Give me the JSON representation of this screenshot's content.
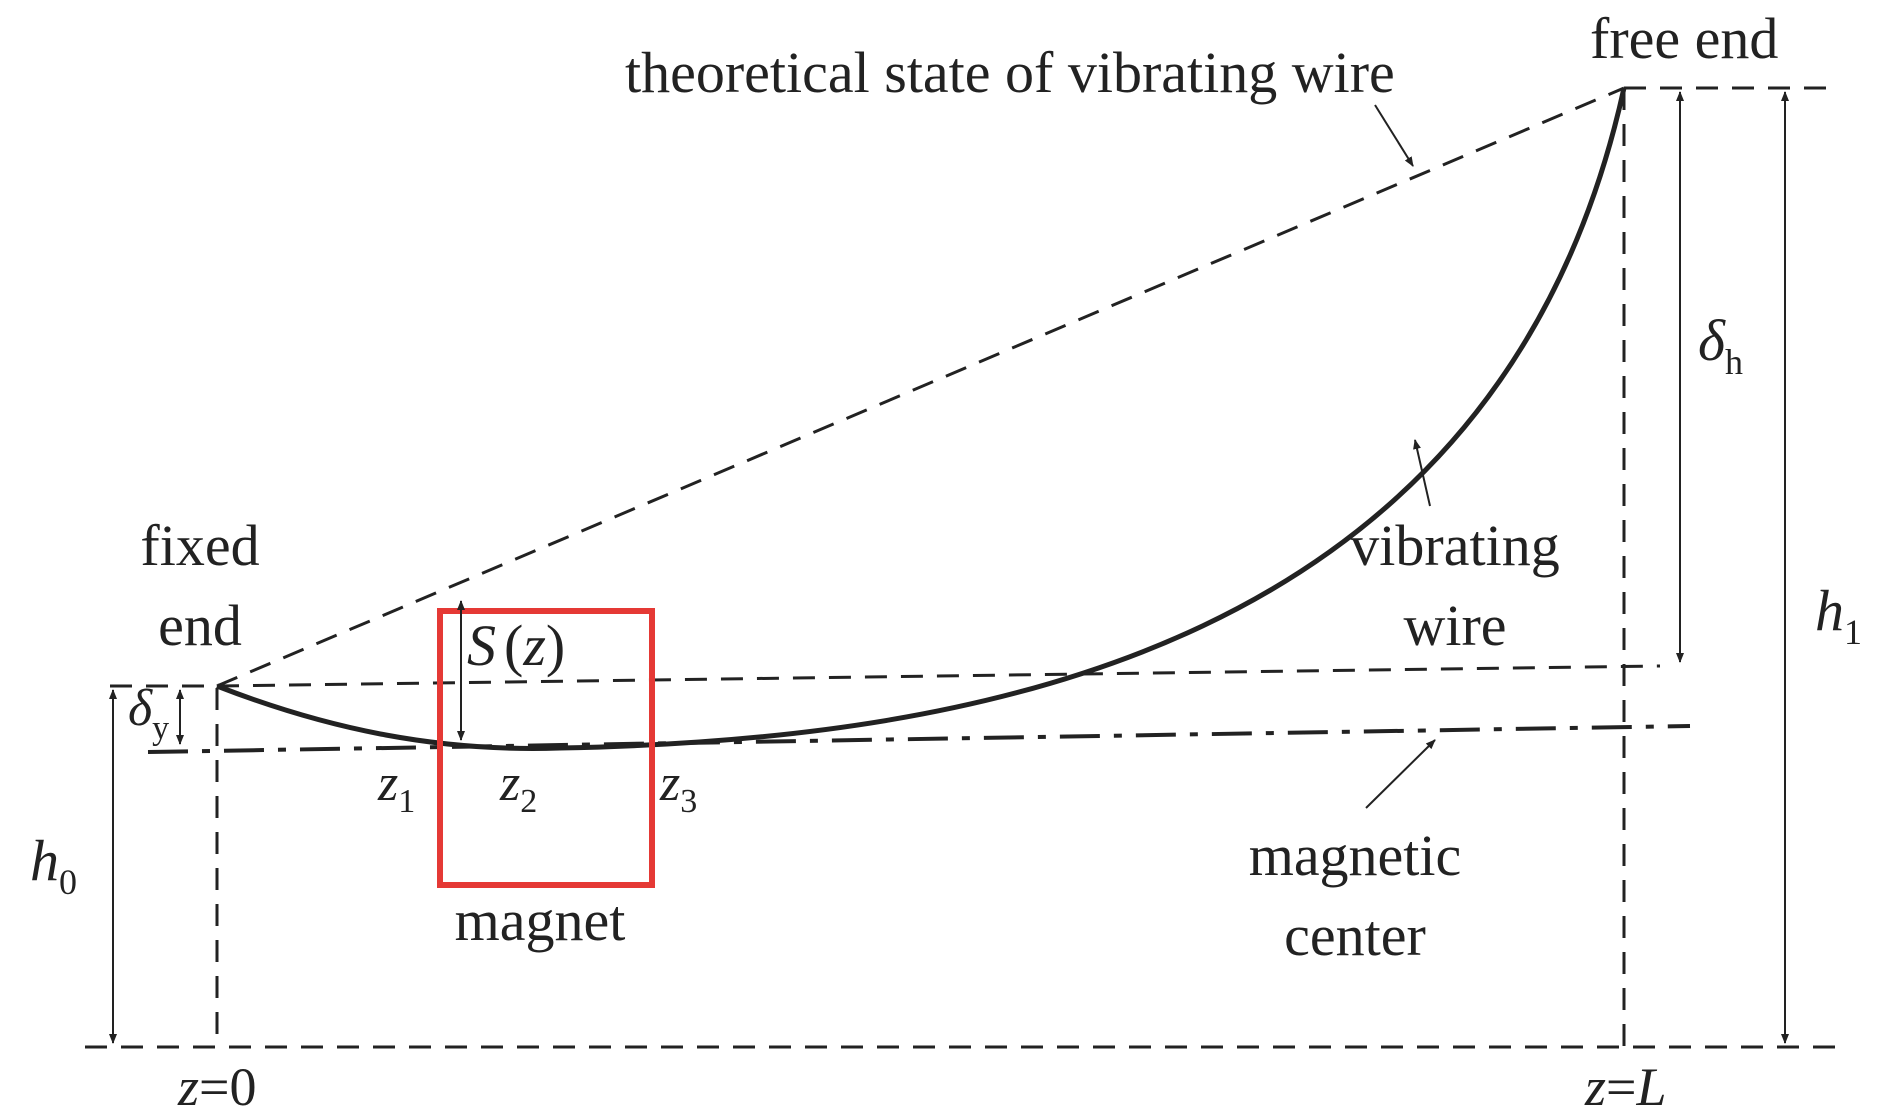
{
  "labels": {
    "theoretical": "theoretical state of vibrating wire",
    "free_end": "free end",
    "fixed_end_line1": "fixed",
    "fixed_end_line2": "end",
    "vibrating_wire_line1": "vibrating",
    "vibrating_wire_line2": "wire",
    "magnetic_center_line1": "magnetic",
    "magnetic_center_line2": "center",
    "magnet": "magnet",
    "S": "S",
    "S_arg": "(z)",
    "z1_base": "z",
    "z1_sub": "1",
    "z2_base": "z",
    "z2_sub": "2",
    "z3_base": "z",
    "z3_sub": "3",
    "delta_y_base": "δ",
    "delta_y_sub": "y",
    "delta_h_base": "δ",
    "delta_h_sub": "h",
    "h0_base": "h",
    "h0_sub": "0",
    "h1_base": "h",
    "h1_sub": "1",
    "z0_var": "z",
    "z0_eq": "=0",
    "zL_var": "z",
    "zL_eq": "=",
    "zL_L": "L"
  },
  "colors": {
    "ink": "#222222",
    "magnet": "#e53935",
    "background": "#ffffff"
  }
}
